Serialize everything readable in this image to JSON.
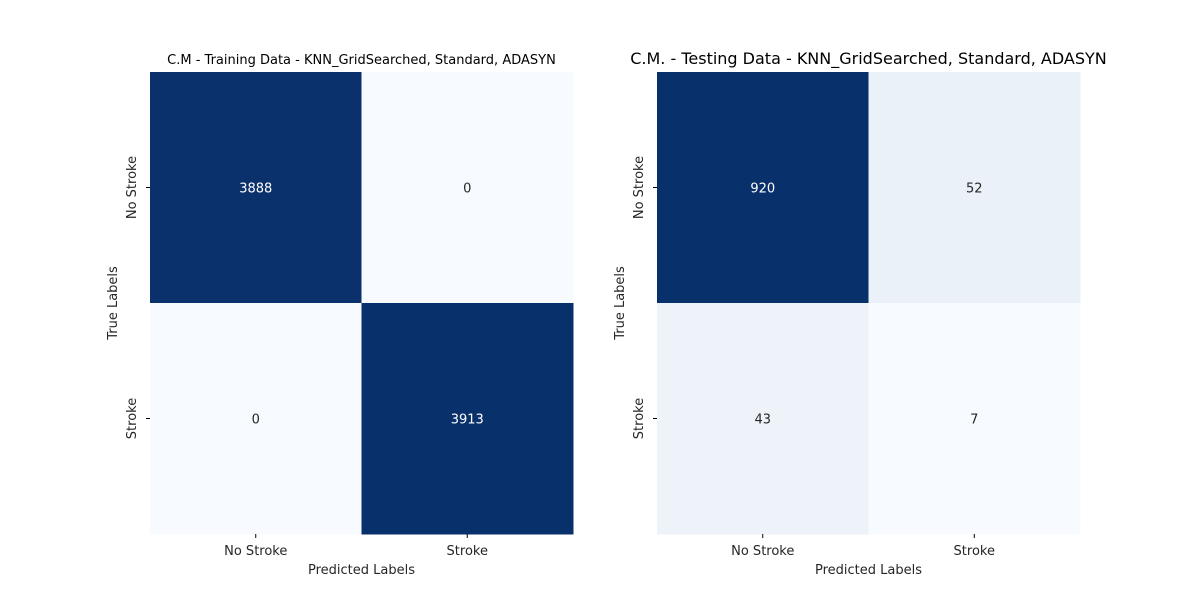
{
  "figure_colors": {
    "low": "#f7fbff",
    "high": "#08306b",
    "text_dark": "#262626",
    "text_light": "#ffffff",
    "axis": "#000000"
  },
  "chart_data": [
    {
      "type": "heatmap",
      "title": "C.M - Training Data - KNN_GridSearched, Standard, ADASYN",
      "xlabel": "Predicted Labels",
      "ylabel": "True Labels",
      "x_categories": [
        "No Stroke",
        "Stroke"
      ],
      "y_categories": [
        "No Stroke",
        "Stroke"
      ],
      "values": [
        [
          3888,
          0
        ],
        [
          0,
          3913
        ]
      ],
      "colormap": "Blues",
      "colorbar": false
    },
    {
      "type": "heatmap",
      "title": "C.M. - Testing Data - KNN_GridSearched, Standard, ADASYN",
      "xlabel": "Predicted Labels",
      "ylabel": "True Labels",
      "x_categories": [
        "No Stroke",
        "Stroke"
      ],
      "y_categories": [
        "No Stroke",
        "Stroke"
      ],
      "values": [
        [
          920,
          52
        ],
        [
          43,
          7
        ]
      ],
      "colormap": "Blues",
      "colorbar": false
    }
  ]
}
